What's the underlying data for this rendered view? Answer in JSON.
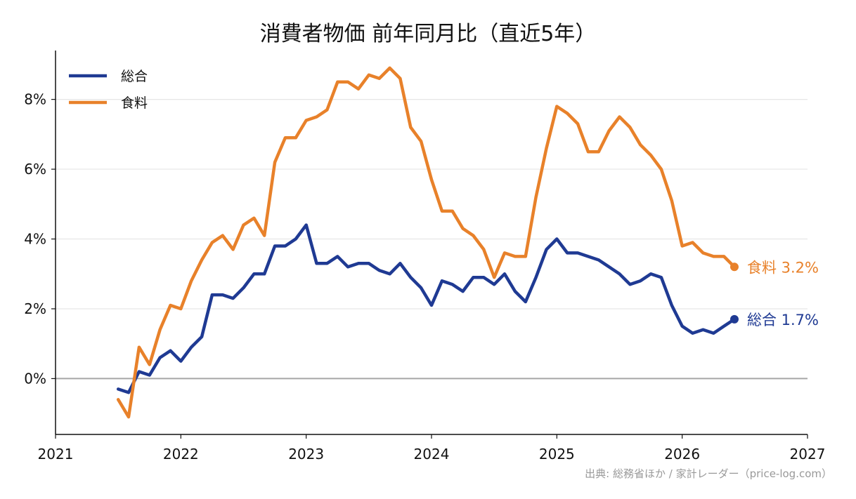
{
  "chart_data": {
    "type": "line",
    "title": "消費者物価 前年同月比（直近5年）",
    "source": "出典: 総務省ほか / 家計レーダー（price-log.com）",
    "xlim": [
      2021,
      2027
    ],
    "ylim": [
      -1.6,
      9.4
    ],
    "x_ticks": [
      2021,
      2022,
      2023,
      2024,
      2025,
      2026,
      2027
    ],
    "x_tick_labels": [
      "2021",
      "2022",
      "2023",
      "2024",
      "2025",
      "2026",
      "2027"
    ],
    "y_ticks": [
      0,
      2,
      4,
      6,
      8
    ],
    "y_tick_labels": [
      "0%",
      "2%",
      "4%",
      "6%",
      "8%"
    ],
    "grid": "horizontal",
    "legend_position": "top-left",
    "x_start": "2021-07",
    "x_step": "1 month",
    "series": [
      {
        "name": "総合",
        "color": "#1f3a93",
        "end_label": "総合 1.7%",
        "values": [
          -0.3,
          -0.4,
          0.2,
          0.1,
          0.6,
          0.8,
          0.5,
          0.9,
          1.2,
          2.4,
          2.4,
          2.3,
          2.6,
          3.0,
          3.0,
          3.8,
          3.8,
          4.0,
          4.4,
          3.3,
          3.3,
          3.5,
          3.2,
          3.3,
          3.3,
          3.1,
          3.0,
          3.3,
          2.9,
          2.6,
          2.1,
          2.8,
          2.7,
          2.5,
          2.9,
          2.9,
          2.7,
          3.0,
          2.5,
          2.2,
          2.9,
          3.7,
          4.0,
          3.6,
          3.6,
          3.5,
          3.4,
          3.2,
          3.0,
          2.7,
          2.8,
          3.0,
          2.9,
          2.1,
          1.5,
          1.3,
          1.4,
          1.3,
          1.5,
          1.7
        ]
      },
      {
        "name": "食料",
        "color": "#e8812a",
        "end_label": "食料 3.2%",
        "values": [
          -0.6,
          -1.1,
          0.9,
          0.4,
          1.4,
          2.1,
          2.0,
          2.8,
          3.4,
          3.9,
          4.1,
          3.7,
          4.4,
          4.6,
          4.1,
          6.2,
          6.9,
          6.9,
          7.4,
          7.5,
          7.7,
          8.5,
          8.5,
          8.3,
          8.7,
          8.6,
          8.9,
          8.6,
          7.2,
          6.8,
          5.7,
          4.8,
          4.8,
          4.3,
          4.1,
          3.7,
          2.9,
          3.6,
          3.5,
          3.5,
          5.2,
          6.6,
          7.8,
          7.6,
          7.3,
          6.5,
          6.5,
          7.1,
          7.5,
          7.2,
          6.7,
          6.4,
          6.0,
          5.1,
          3.8,
          3.9,
          3.6,
          3.5,
          3.5,
          3.2
        ]
      }
    ]
  }
}
